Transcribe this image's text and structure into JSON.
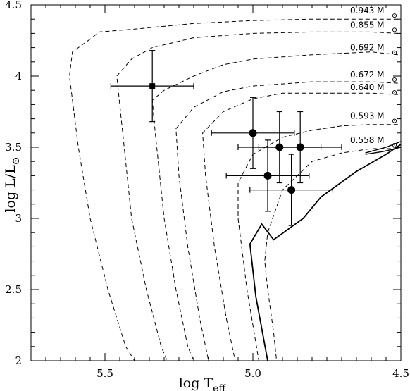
{
  "chart_data": {
    "type": "scatter",
    "title": "",
    "xlabel": "log T",
    "xlabel_sub": "eff",
    "ylabel": "log L/L",
    "ylabel_sub": "⊙",
    "xlim": [
      5.75,
      4.5
    ],
    "ylim": [
      2.0,
      4.5
    ],
    "x_reversed": true,
    "x_ticks": [
      {
        "value": 5.5,
        "label": "5.5"
      },
      {
        "value": 5.0,
        "label": "5.0"
      },
      {
        "value": 4.5,
        "label": "4.5"
      }
    ],
    "y_ticks": [
      {
        "value": 2.0,
        "label": "2"
      },
      {
        "value": 2.5,
        "label": "2.5"
      },
      {
        "value": 3.0,
        "label": "3"
      },
      {
        "value": 3.5,
        "label": "3.5"
      },
      {
        "value": 4.0,
        "label": "4"
      },
      {
        "value": 4.5,
        "label": "4.5"
      }
    ],
    "tracks": [
      {
        "mass": "0.943",
        "unit": "M",
        "label_y": 4.44,
        "points": [
          [
            4.51,
            4.4
          ],
          [
            4.6,
            4.4
          ],
          [
            4.8,
            4.4
          ],
          [
            5.0,
            4.39
          ],
          [
            5.2,
            4.37
          ],
          [
            5.4,
            4.33
          ],
          [
            5.52,
            4.31
          ],
          [
            5.55,
            4.26
          ],
          [
            5.61,
            4.17
          ],
          [
            5.62,
            4.0
          ],
          [
            5.59,
            3.5
          ],
          [
            5.55,
            3.0
          ],
          [
            5.49,
            2.5
          ],
          [
            5.43,
            2.1
          ],
          [
            5.4,
            2.0
          ]
        ]
      },
      {
        "mass": "0.855",
        "unit": "M",
        "label_y": 4.34,
        "points": [
          [
            4.51,
            4.3
          ],
          [
            4.6,
            4.31
          ],
          [
            4.8,
            4.31
          ],
          [
            5.0,
            4.3
          ],
          [
            5.2,
            4.27
          ],
          [
            5.34,
            4.2
          ],
          [
            5.41,
            4.12
          ],
          [
            5.46,
            4.0
          ],
          [
            5.44,
            3.6
          ],
          [
            5.41,
            3.0
          ],
          [
            5.36,
            2.5
          ],
          [
            5.31,
            2.1
          ],
          [
            5.29,
            2.0
          ]
        ]
      },
      {
        "mass": "0.692",
        "unit": "M",
        "label_y": 4.18,
        "points": [
          [
            4.51,
            4.15
          ],
          [
            4.6,
            4.17
          ],
          [
            4.8,
            4.15
          ],
          [
            5.0,
            4.12
          ],
          [
            5.1,
            4.08
          ],
          [
            5.2,
            4.0
          ],
          [
            5.3,
            3.9
          ],
          [
            5.34,
            3.83
          ],
          [
            5.33,
            3.6
          ],
          [
            5.3,
            3.0
          ],
          [
            5.26,
            2.5
          ],
          [
            5.22,
            2.1
          ],
          [
            5.2,
            2.0
          ]
        ]
      },
      {
        "mass": "0.672",
        "unit": "M",
        "label_y": 3.99,
        "points": [
          [
            4.51,
            3.95
          ],
          [
            4.6,
            3.96
          ],
          [
            4.8,
            3.96
          ],
          [
            5.0,
            3.93
          ],
          [
            5.1,
            3.89
          ],
          [
            5.2,
            3.78
          ],
          [
            5.26,
            3.63
          ],
          [
            5.25,
            3.3
          ],
          [
            5.22,
            2.8
          ],
          [
            5.18,
            2.3
          ],
          [
            5.15,
            2.0
          ]
        ]
      },
      {
        "mass": "0.640",
        "unit": "M",
        "label_y": 3.9,
        "points": [
          [
            4.51,
            3.87
          ],
          [
            4.6,
            3.88
          ],
          [
            4.8,
            3.88
          ],
          [
            4.9,
            3.88
          ],
          [
            5.0,
            3.84
          ],
          [
            5.1,
            3.75
          ],
          [
            5.17,
            3.6
          ],
          [
            5.16,
            3.3
          ],
          [
            5.13,
            2.8
          ],
          [
            5.09,
            2.3
          ],
          [
            5.06,
            2.0
          ]
        ]
      },
      {
        "mass": "0.593",
        "unit": "M",
        "label_y": 3.7,
        "points": [
          [
            4.51,
            3.66
          ],
          [
            4.6,
            3.66
          ],
          [
            4.7,
            3.65
          ],
          [
            4.8,
            3.62
          ],
          [
            4.9,
            3.57
          ],
          [
            5.0,
            3.45
          ],
          [
            5.05,
            3.25
          ],
          [
            5.05,
            3.0
          ],
          [
            5.02,
            2.5
          ],
          [
            4.98,
            2.0
          ]
        ]
      },
      {
        "mass": "0.558",
        "unit": "M",
        "label_y": 3.53,
        "points": [
          [
            4.51,
            3.49
          ],
          [
            4.6,
            3.49
          ],
          [
            4.7,
            3.46
          ],
          [
            4.8,
            3.4
          ],
          [
            4.9,
            3.2
          ],
          [
            4.95,
            2.9
          ],
          [
            4.96,
            2.7
          ],
          [
            4.95,
            2.5
          ],
          [
            4.93,
            2.2
          ],
          [
            4.92,
            2.0
          ]
        ]
      }
    ],
    "solid_curve": [
      [
        4.5,
        3.52
      ],
      [
        4.55,
        3.45
      ],
      [
        4.65,
        3.33
      ],
      [
        4.77,
        3.15
      ],
      [
        4.83,
        3.0
      ],
      [
        4.93,
        2.85
      ],
      [
        4.97,
        2.96
      ],
      [
        5.01,
        2.82
      ],
      [
        4.99,
        2.45
      ],
      [
        4.95,
        2.0
      ]
    ],
    "solid_curve_extra": [
      [
        [
          4.5,
          3.54
        ],
        [
          4.55,
          3.5
        ],
        [
          4.62,
          3.46
        ]
      ],
      [
        [
          4.5,
          3.5
        ],
        [
          4.56,
          3.47
        ],
        [
          4.62,
          3.45
        ]
      ]
    ],
    "points": [
      {
        "marker": "square",
        "x": 5.34,
        "y": 3.93,
        "xerr": 0.14,
        "yerr": 0.25
      },
      {
        "marker": "circle",
        "x": 5.0,
        "y": 3.6,
        "xerr": 0.14,
        "yerr": 0.25
      },
      {
        "marker": "circle",
        "x": 4.91,
        "y": 3.5,
        "xerr": 0.14,
        "yerr": 0.25
      },
      {
        "marker": "circle",
        "x": 4.84,
        "y": 3.5,
        "xerr": 0.14,
        "yerr": 0.25
      },
      {
        "marker": "circle",
        "x": 4.95,
        "y": 3.3,
        "xerr": 0.14,
        "yerr": 0.25
      },
      {
        "marker": "circle",
        "x": 4.87,
        "y": 3.2,
        "xerr": 0.14,
        "yerr": 0.25
      }
    ]
  }
}
